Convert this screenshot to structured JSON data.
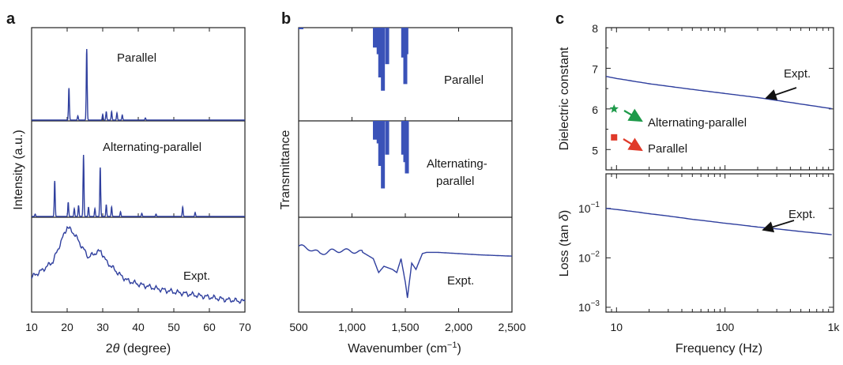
{
  "panels": {
    "a": {
      "letter": "a",
      "ylabel": "Intensity (a.u.)",
      "xlabel": "2θ (degree)",
      "xlabel_prefix": "2",
      "xlabel_theta": "θ",
      "xlabel_suffix": " (degree)",
      "xlim": [
        10,
        70
      ],
      "xticks": [
        "10",
        "20",
        "30",
        "40",
        "50",
        "60",
        "70"
      ],
      "labels": [
        "Parallel",
        "Alternating-parallel",
        "Expt."
      ]
    },
    "b": {
      "letter": "b",
      "ylabel": "Transmittance",
      "xlabel_prefix": "Wavenumber (cm",
      "xlabel_sup": "−1",
      "xlabel_suffix": ")",
      "xlim": [
        500,
        2500
      ],
      "xticks": [
        "500",
        "1,000",
        "1,500",
        "2,000",
        "2,500"
      ],
      "labels": [
        "Parallel",
        "Alternating-",
        "parallel",
        "Expt."
      ]
    },
    "c": {
      "letter": "c",
      "ylabel_top": "Dielectric constant",
      "ylabel_bottom_prefix": "Loss (tan ",
      "ylabel_bottom_delta": "δ",
      "ylabel_bottom_suffix": ")",
      "xlabel": "Frequency (Hz)",
      "xticks": [
        "10",
        "100",
        "1k"
      ],
      "yticks_top": [
        "5",
        "6",
        "7",
        "8"
      ],
      "yticks_bottom": [
        {
          "base": "10",
          "exp": "−1"
        },
        {
          "base": "10",
          "exp": "−2"
        },
        {
          "base": "10",
          "exp": "−3"
        }
      ],
      "annotations": {
        "expt_top": "Expt.",
        "alt": "Alternating-parallel",
        "parallel": "Parallel",
        "expt_bottom": "Expt."
      },
      "colors": {
        "alt_marker": "#1e9a4a",
        "parallel_marker": "#e03a2a",
        "arrow": "#111111",
        "line": "#2f3f9e"
      }
    }
  },
  "chart_data": [
    {
      "type": "line",
      "panel": "a",
      "xlim": [
        10,
        70
      ],
      "series": [
        {
          "name": "Parallel",
          "peaks": [
            [
              20.5,
              0.45
            ],
            [
              23.0,
              0.06
            ],
            [
              25.5,
              1.0
            ],
            [
              30.0,
              0.08
            ],
            [
              31.0,
              0.12
            ],
            [
              32.5,
              0.12
            ],
            [
              34.0,
              0.1
            ],
            [
              35.5,
              0.07
            ],
            [
              42.0,
              0.03
            ]
          ]
        },
        {
          "name": "Alternating-parallel",
          "peaks": [
            [
              11.0,
              0.03
            ],
            [
              16.5,
              0.45
            ],
            [
              20.3,
              0.18
            ],
            [
              22.0,
              0.1
            ],
            [
              23.2,
              0.14
            ],
            [
              24.6,
              0.78
            ],
            [
              26.0,
              0.12
            ],
            [
              27.8,
              0.1
            ],
            [
              29.3,
              0.62
            ],
            [
              31.0,
              0.15
            ],
            [
              32.5,
              0.12
            ],
            [
              35.0,
              0.06
            ],
            [
              41.0,
              0.04
            ],
            [
              45.0,
              0.03
            ],
            [
              52.5,
              0.12
            ],
            [
              56.0,
              0.05
            ]
          ]
        },
        {
          "name": "Expt.",
          "x": [
            10,
            13,
            16,
            18,
            20,
            22,
            24,
            26,
            28,
            29.5,
            31,
            33,
            35,
            37,
            40,
            45,
            50,
            55,
            60,
            65,
            70
          ],
          "y": [
            0.32,
            0.4,
            0.5,
            0.7,
            0.9,
            0.82,
            0.68,
            0.55,
            0.6,
            0.62,
            0.5,
            0.42,
            0.34,
            0.28,
            0.24,
            0.19,
            0.15,
            0.12,
            0.09,
            0.06,
            0.04
          ]
        }
      ]
    },
    {
      "type": "bar",
      "panel": "b",
      "xlim": [
        500,
        2500
      ],
      "series": [
        {
          "name": "Parallel",
          "bars": [
            [
              1215,
              0.3
            ],
            [
              1250,
              0.4
            ],
            [
              1265,
              0.75
            ],
            [
              1290,
              0.95
            ],
            [
              1330,
              0.55
            ],
            [
              1480,
              0.45
            ],
            [
              1500,
              0.85
            ],
            [
              1510,
              0.4
            ]
          ]
        },
        {
          "name": "Alternating-parallel",
          "bars": [
            [
              1215,
              0.25
            ],
            [
              1250,
              0.3
            ],
            [
              1265,
              0.6
            ],
            [
              1290,
              0.9
            ],
            [
              1330,
              0.45
            ],
            [
              1480,
              0.45
            ],
            [
              1500,
              0.55
            ],
            [
              1515,
              0.7
            ]
          ]
        },
        {
          "name": "Expt.",
          "x": [
            500,
            600,
            700,
            800,
            900,
            1000,
            1100,
            1200,
            1250,
            1300,
            1380,
            1420,
            1460,
            1500,
            1520,
            1560,
            1600,
            1660,
            1700,
            1800,
            2000,
            2200,
            2500
          ],
          "y": [
            0.92,
            0.88,
            0.8,
            0.84,
            0.85,
            0.84,
            0.82,
            0.72,
            0.5,
            0.6,
            0.55,
            0.5,
            0.72,
            0.35,
            0.1,
            0.65,
            0.55,
            0.8,
            0.82,
            0.82,
            0.8,
            0.78,
            0.76
          ]
        }
      ]
    },
    {
      "type": "line",
      "panel": "c",
      "xscale": "log",
      "xlim": [
        8,
        1000
      ],
      "top": {
        "ylim": [
          4.5,
          8
        ],
        "series": [
          {
            "name": "Expt.",
            "x": [
              8,
              10,
              20,
              50,
              100,
              200,
              500,
              1000
            ],
            "y": [
              6.8,
              6.75,
              6.62,
              6.48,
              6.38,
              6.28,
              6.12,
              6.0
            ]
          },
          {
            "name": "Alternating-parallel",
            "points": [
              [
                9.5,
                6.0
              ]
            ]
          },
          {
            "name": "Parallel",
            "points": [
              [
                9.5,
                5.3
              ]
            ]
          }
        ]
      },
      "bottom": {
        "yscale": "log",
        "ylim": [
          0.0008,
          0.5
        ],
        "series": [
          {
            "name": "Expt.",
            "x": [
              8,
              10,
              20,
              50,
              100,
              200,
              500,
              1000
            ],
            "y": [
              0.1,
              0.095,
              0.078,
              0.06,
              0.05,
              0.042,
              0.034,
              0.029
            ]
          }
        ]
      }
    }
  ]
}
